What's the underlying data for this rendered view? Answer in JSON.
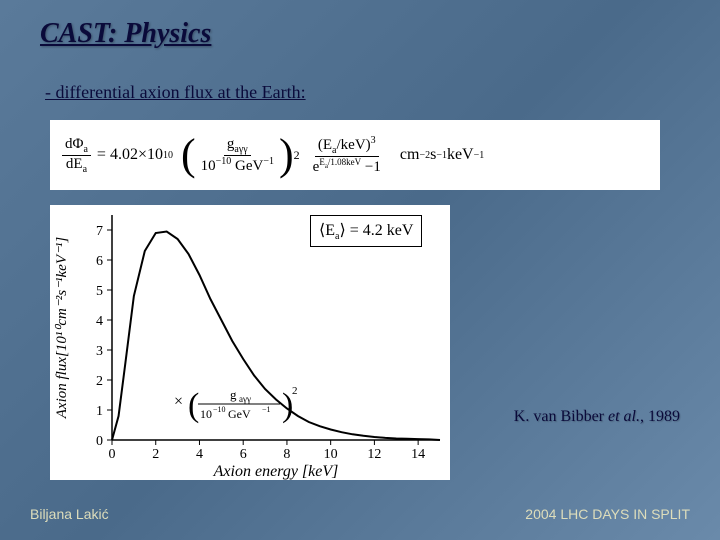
{
  "slide": {
    "title": "CAST: Physics",
    "subtitle": "- differential axion flux at the Earth:",
    "citation_author": "K. van Bibber ",
    "citation_etal": "et al.",
    "citation_year": ", 1989",
    "footer_left": "Biljana Lakić",
    "footer_right": "2004 LHC DAYS IN SPLIT",
    "background_gradient": [
      "#5a7a9a",
      "#4a6a8a",
      "#6a8aaa"
    ],
    "title_color": "#0a0a3a"
  },
  "equation": {
    "lhs_num": "dΦ",
    "lhs_num_sub": "a",
    "lhs_den": "dE",
    "lhs_den_sub": "a",
    "coeff": "= 4.02×10",
    "coeff_exp": "10",
    "g_num": "g",
    "g_num_sub": "aγγ",
    "g_den": "10",
    "g_den_exp": "−10",
    "g_den_unit": " GeV",
    "g_den_unit_exp": "−1",
    "g_outer_exp": "2",
    "E_num": "(E",
    "E_num_sub": "a",
    "E_num_rest": "/keV)",
    "E_num_exp": "3",
    "E_den_left": "e",
    "E_den_exp_txt": "E",
    "E_den_exp_sub": "a",
    "E_den_exp_rest": "/1.08keV",
    "E_den_right": " −1",
    "units": "   cm",
    "u1_exp": "−2",
    "u2": "s",
    "u2_exp": "−1",
    "u3": "keV",
    "u3_exp": "−1"
  },
  "mean_energy": {
    "label": "⟨E",
    "sub": "a",
    "rest": "⟩ = 4.2 keV"
  },
  "chart": {
    "type": "line",
    "xlabel": "Axion energy [keV]",
    "ylabel": "Axion flux[10¹⁰cm⁻²s⁻¹keV⁻¹]",
    "xlim": [
      0,
      15
    ],
    "ylim": [
      0,
      7.5
    ],
    "xticks": [
      0,
      2,
      4,
      6,
      8,
      10,
      12,
      14
    ],
    "yticks": [
      0,
      1,
      2,
      3,
      4,
      5,
      6,
      7
    ],
    "line_color": "#000000",
    "line_width": 2,
    "background_color": "#ffffff",
    "font_family": "Times New Roman",
    "label_fontsize": 16,
    "tick_fontsize": 14,
    "ylabel_style": "italic",
    "xlabel_style": "italic",
    "data": [
      [
        0.0,
        0.0
      ],
      [
        0.3,
        0.8
      ],
      [
        0.6,
        2.5
      ],
      [
        1.0,
        4.8
      ],
      [
        1.5,
        6.3
      ],
      [
        2.0,
        6.9
      ],
      [
        2.5,
        6.95
      ],
      [
        3.0,
        6.7
      ],
      [
        3.5,
        6.2
      ],
      [
        4.0,
        5.5
      ],
      [
        4.5,
        4.7
      ],
      [
        5.0,
        4.0
      ],
      [
        5.5,
        3.3
      ],
      [
        6.0,
        2.7
      ],
      [
        6.5,
        2.15
      ],
      [
        7.0,
        1.7
      ],
      [
        7.5,
        1.35
      ],
      [
        8.0,
        1.05
      ],
      [
        8.5,
        0.8
      ],
      [
        9.0,
        0.6
      ],
      [
        9.5,
        0.46
      ],
      [
        10.0,
        0.35
      ],
      [
        10.5,
        0.26
      ],
      [
        11.0,
        0.19
      ],
      [
        11.5,
        0.14
      ],
      [
        12.0,
        0.1
      ],
      [
        12.5,
        0.07
      ],
      [
        13.0,
        0.05
      ],
      [
        13.5,
        0.04
      ],
      [
        14.0,
        0.03
      ],
      [
        14.5,
        0.02
      ],
      [
        15.0,
        0.0
      ]
    ],
    "inset_formula": {
      "prefix": "×",
      "num": "g",
      "num_sub": "aγγ",
      "den_base": "10",
      "den_exp": "−10",
      "den_unit": " GeV",
      "den_unit_exp": "−1",
      "outer_exp": "2",
      "position_xy": [
        3.2,
        1.4
      ]
    }
  }
}
